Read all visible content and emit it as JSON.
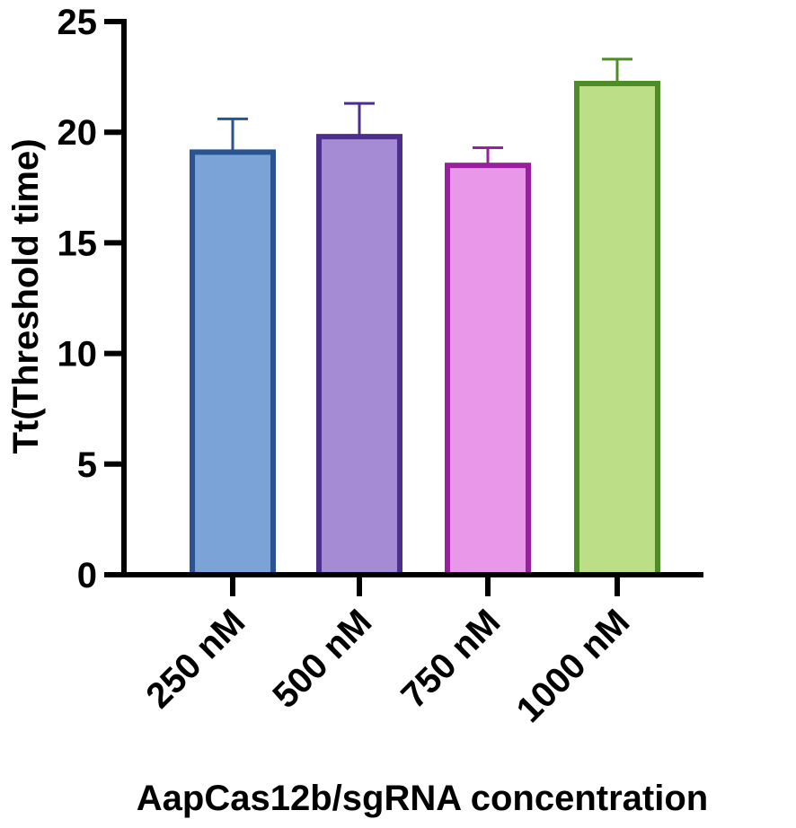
{
  "chart_data": {
    "type": "bar",
    "title": "",
    "xlabel": "AapCas12b/sgRNA concentration",
    "ylabel": "Tt(Threshold time)",
    "ylim": [
      0,
      25
    ],
    "yticks": [
      0,
      5,
      10,
      15,
      20,
      25
    ],
    "grid": false,
    "legend": "none",
    "categories": [
      "250 nM",
      "500 nM",
      "750 nM",
      "1000 nM"
    ],
    "values": [
      19.1,
      19.8,
      18.5,
      22.2
    ],
    "errors": [
      1.5,
      1.5,
      0.8,
      1.1
    ],
    "fill_colors": [
      "#7ba3d8",
      "#a58ad4",
      "#e897e9",
      "#bcde86"
    ],
    "edge_colors": [
      "#2a5391",
      "#4d2e8c",
      "#9a1f9e",
      "#4e8c27"
    ]
  }
}
